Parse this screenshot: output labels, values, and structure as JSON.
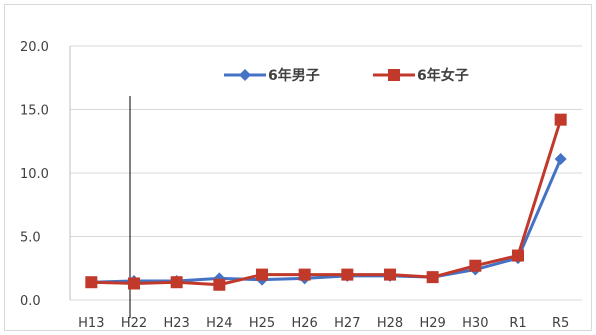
{
  "chart_data": {
    "type": "line",
    "title": "",
    "xlabel": "",
    "ylabel": "",
    "categories": [
      "H13",
      "H22",
      "H23",
      "H24",
      "H25",
      "H26",
      "H27",
      "H28",
      "H29",
      "H30",
      "R1",
      "R5"
    ],
    "ylim": [
      0,
      20
    ],
    "yticks": [
      "0.0",
      "5.0",
      "10.0",
      "15.0",
      "20.0"
    ],
    "ytick_values": [
      0,
      5,
      10,
      15,
      20
    ],
    "grid": true,
    "legend_position": "top-center",
    "series": [
      {
        "name": "6年男子",
        "color": "#4472c4",
        "marker": "diamond",
        "values": [
          1.4,
          1.5,
          1.5,
          1.7,
          1.6,
          1.7,
          1.9,
          1.9,
          1.8,
          2.4,
          3.3,
          11.1
        ]
      },
      {
        "name": "6年女子",
        "color": "#c0392b",
        "marker": "square",
        "values": [
          1.4,
          1.3,
          1.4,
          1.2,
          2.0,
          2.0,
          2.0,
          2.0,
          1.8,
          2.7,
          3.5,
          14.2
        ]
      }
    ]
  }
}
